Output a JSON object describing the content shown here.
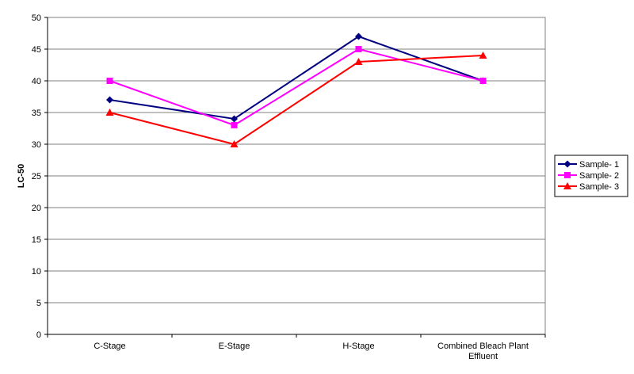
{
  "chart_data": {
    "type": "line",
    "title": "",
    "xlabel": "",
    "ylabel": "LC-50",
    "ylim": [
      0,
      50
    ],
    "yticks": [
      0,
      5,
      10,
      15,
      20,
      25,
      30,
      35,
      40,
      45,
      50
    ],
    "grid": true,
    "legend_position": "right",
    "categories": [
      "C-Stage",
      "E-Stage",
      "H-Stage",
      "Combined Bleach Plant Effluent"
    ],
    "series": [
      {
        "name": "Sample- 1",
        "values": [
          37,
          34,
          47,
          40
        ],
        "color": "#000080",
        "marker": "diamond"
      },
      {
        "name": "Sample- 2",
        "values": [
          40,
          33,
          45,
          40
        ],
        "color": "#FF00FF",
        "marker": "square"
      },
      {
        "name": "Sample- 3",
        "values": [
          35,
          30,
          43,
          44
        ],
        "color": "#FF0000",
        "marker": "triangle"
      }
    ]
  }
}
